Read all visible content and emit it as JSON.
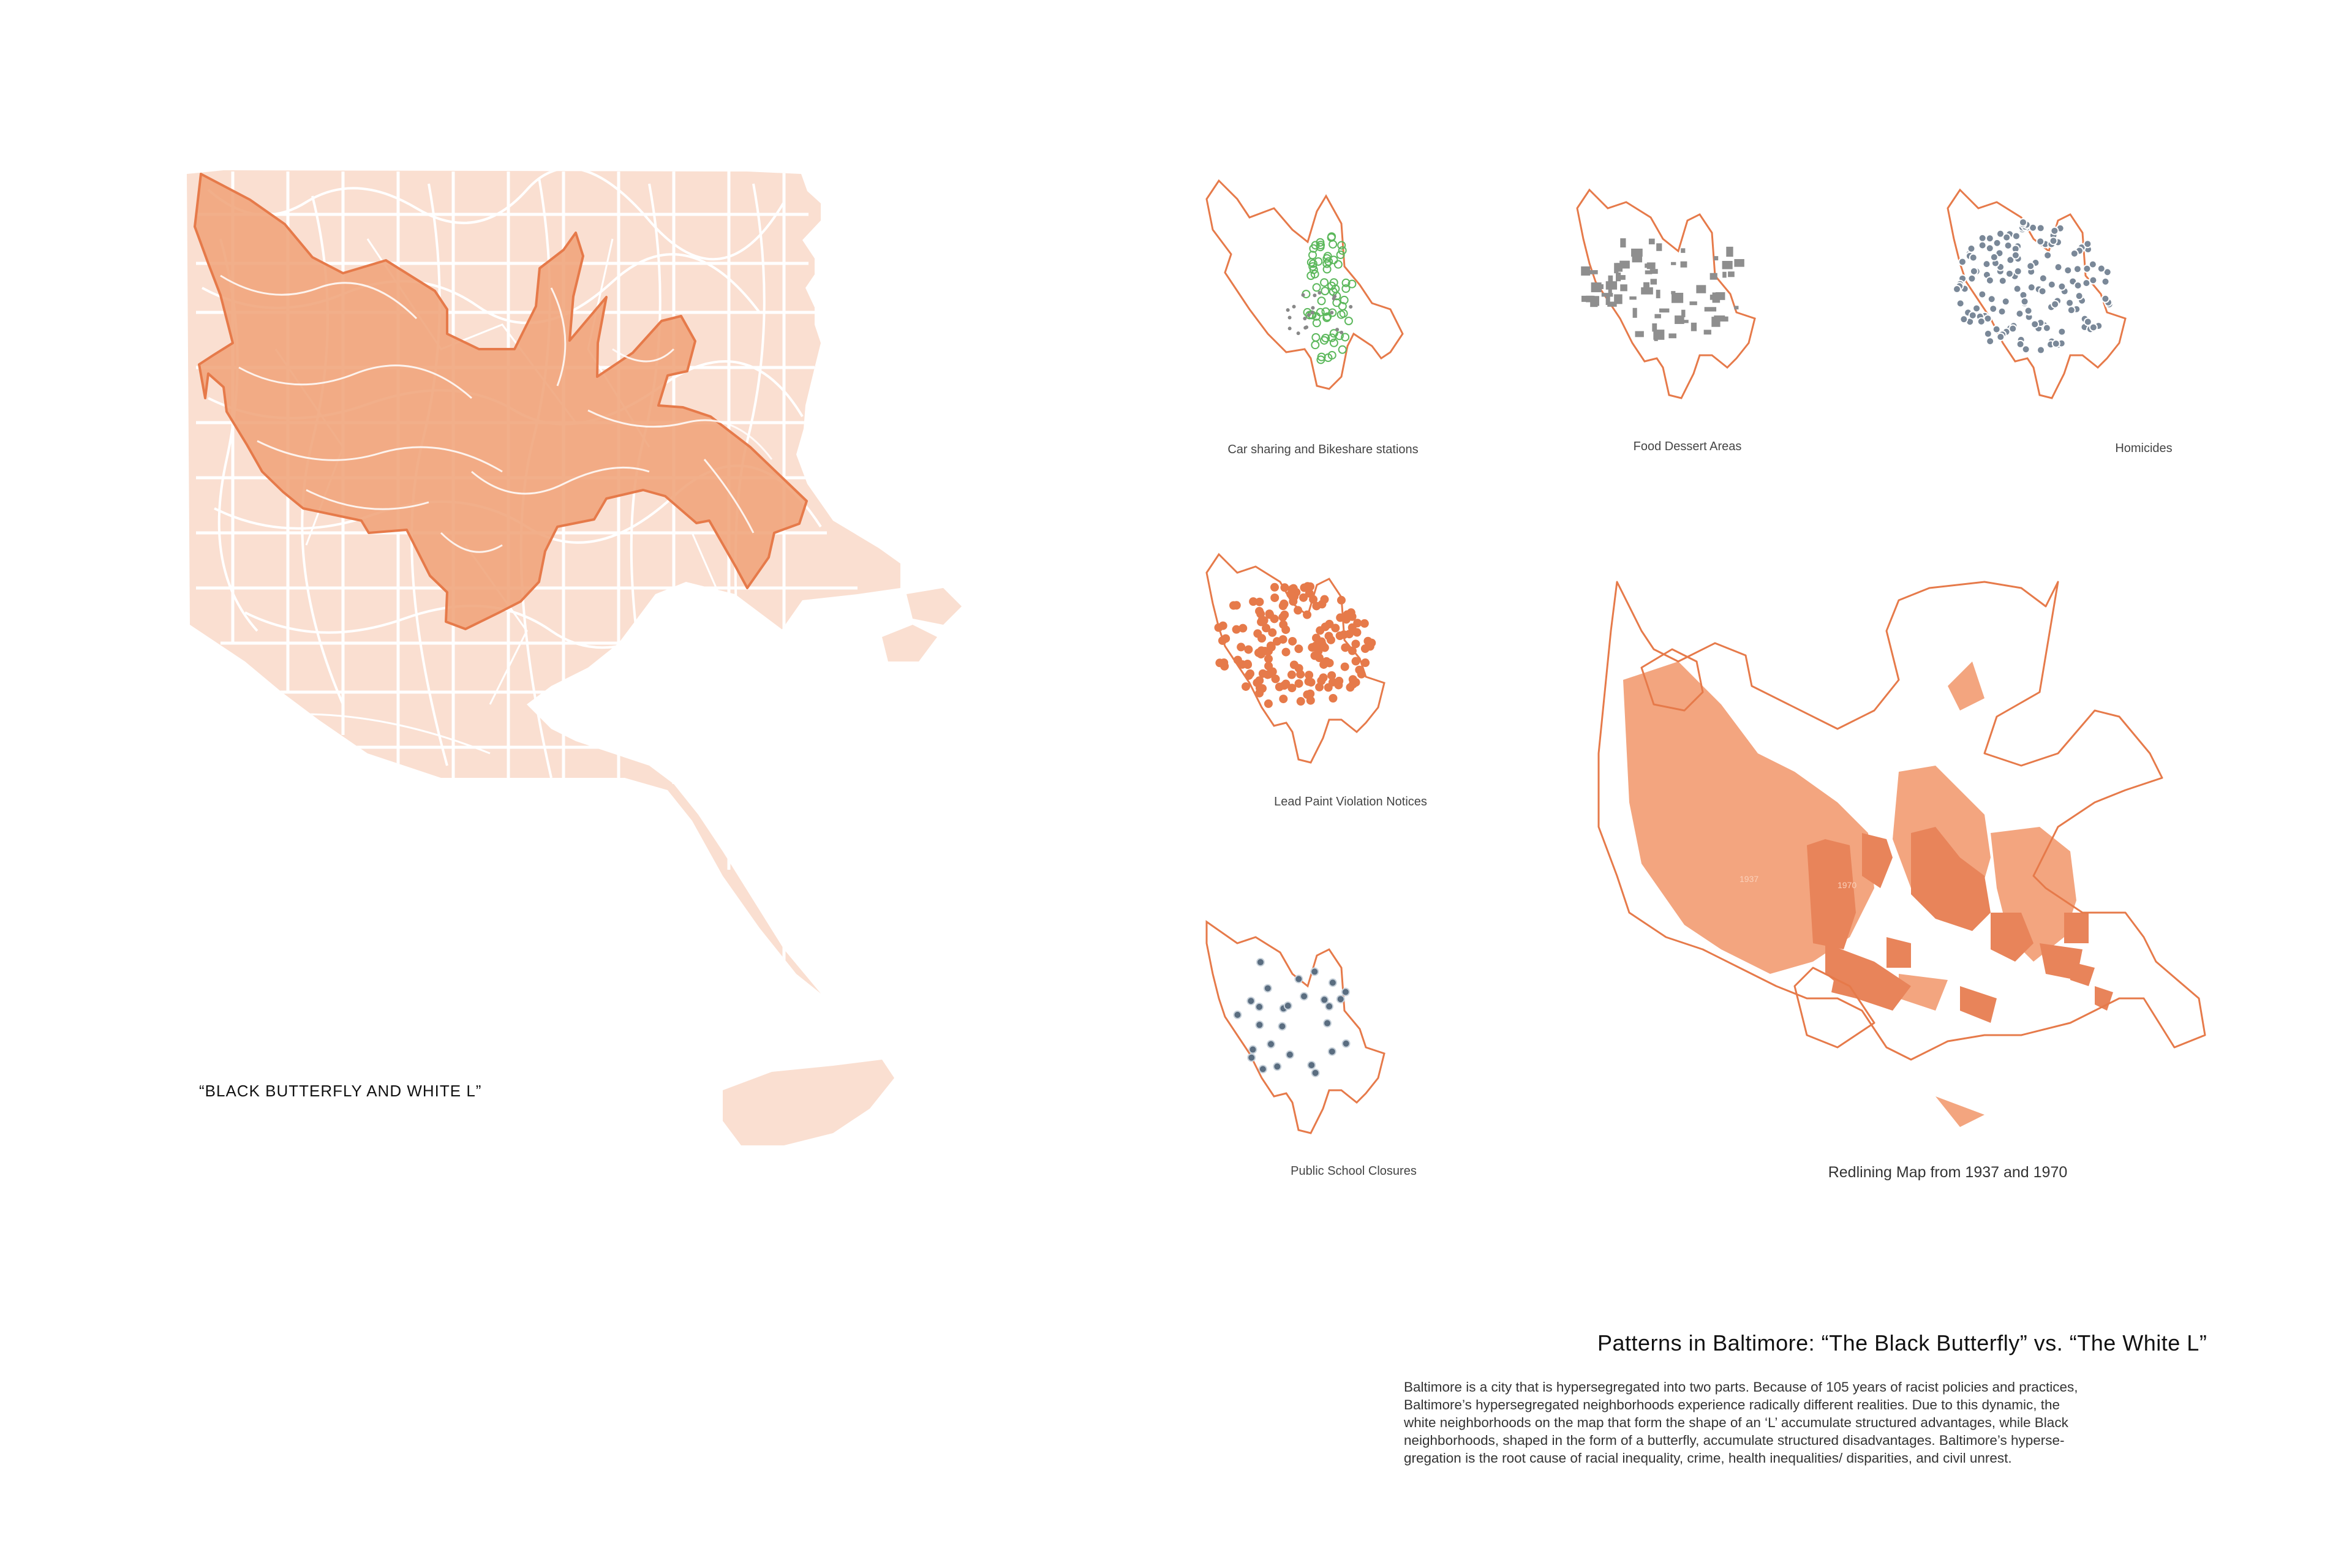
{
  "main_map": {
    "caption": "“BLACK BUTTERFLY AND WHITE L”",
    "base_color": "#fadfd1",
    "street_color": "#ffffff",
    "butterfly_fill": "#f0a47a",
    "butterfly_stroke": "#e67a4a"
  },
  "small_maps": [
    {
      "caption": "Car sharing and Bikeshare stations",
      "marker_color": "#5cb85c"
    },
    {
      "caption": "Food Dessert Areas",
      "marker_color": "#8e8e8e"
    },
    {
      "caption": "Homicides",
      "marker_color": "#7a8898"
    },
    {
      "caption": "Lead Paint Violation Notices",
      "marker_color": "#e67a4a"
    },
    {
      "caption": "Public School Closures",
      "marker_color": "#5a6d80"
    }
  ],
  "redlining_map": {
    "caption": "Redlining Map from 1937 and 1970",
    "label_1937": "1937",
    "label_1970": "1970",
    "fill_1937": "#f3a57f",
    "fill_1970": "#e8845a",
    "outline_color": "#e67a4a"
  },
  "text": {
    "title": "Patterns in Baltimore: “The Black Butterfly” vs. “The White L”",
    "desc_lines": [
      "Baltimore is a city that is hypersegregated into two parts. Because of 105 years of racist policies and practices,",
      "Baltimore’s hypersegregated neighborhoods experience radically different realities. Due to this dynamic, the",
      "white neighborhoods on the map that form the shape of an ‘L’ accumulate structured advantages, while Black",
      "neighborhoods, shaped in the form of a butterfly, accumulate structured disadvantages. Baltimore’s hyperse-",
      "gregation is the root cause of racial inequality, crime, health inequalities/ disparities, and civil unrest."
    ]
  }
}
